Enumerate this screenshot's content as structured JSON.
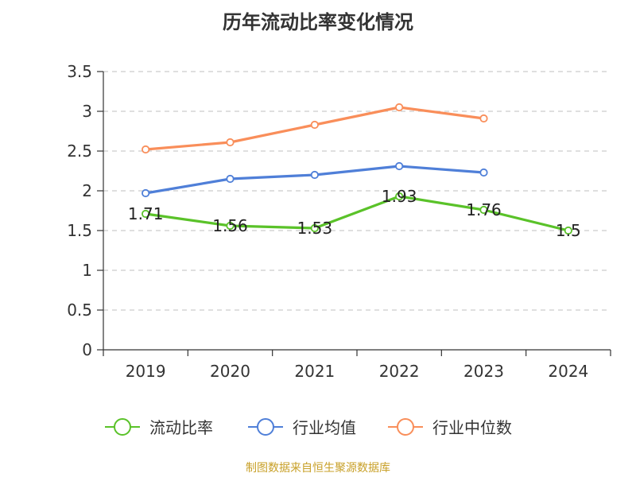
{
  "chart_data": {
    "type": "line",
    "title": "历年流动比率变化情况",
    "categories": [
      "2019",
      "2020",
      "2021",
      "2022",
      "2023",
      "2024"
    ],
    "ylim": [
      0,
      3.5
    ],
    "yticks": [
      "0",
      "0.5",
      "1",
      "1.5",
      "2",
      "2.5",
      "3",
      "3.5"
    ],
    "grid": "horizontal-dashed",
    "legend_position": "bottom",
    "series": [
      {
        "name": "流动比率",
        "color": "#5ac229",
        "values": [
          1.71,
          1.56,
          1.53,
          1.93,
          1.76,
          1.5
        ],
        "labels": [
          "1.71",
          "1.56",
          "1.53",
          "1.93",
          "1.76",
          "1.5"
        ]
      },
      {
        "name": "行业均值",
        "color": "#4f7fd8",
        "values": [
          1.97,
          2.15,
          2.2,
          2.31,
          2.23,
          null
        ]
      },
      {
        "name": "行业中位数",
        "color": "#f98e5a",
        "values": [
          2.52,
          2.61,
          2.83,
          3.05,
          2.91,
          null
        ]
      }
    ]
  },
  "source_note": "制图数据来自恒生聚源数据库",
  "source_color": "#c8a028"
}
